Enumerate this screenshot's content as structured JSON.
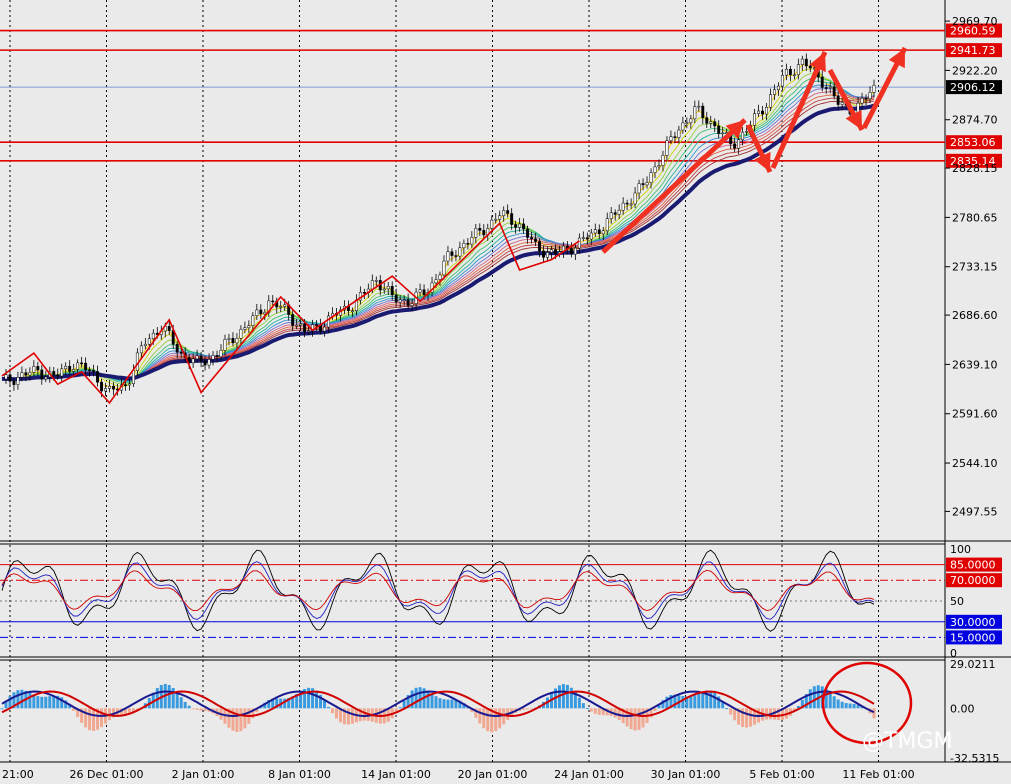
{
  "chart_data": [
    {
      "type": "candlestick",
      "pane": "price",
      "ylim": [
        2470,
        2990
      ],
      "y_ticks": [
        "2969.70",
        "2922.20",
        "2874.70",
        "2828.15",
        "2780.65",
        "2733.15",
        "2686.60",
        "2639.10",
        "2591.60",
        "2544.10",
        "2497.55"
      ],
      "current_price": "2906.12",
      "levels": [
        {
          "value": "2960.59",
          "color": "#e00000"
        },
        {
          "value": "2941.73",
          "color": "#e00000"
        },
        {
          "value": "2853.06",
          "color": "#e00000"
        },
        {
          "value": "2835.14",
          "color": "#e00000"
        }
      ],
      "x_labels": [
        "21:00",
        "26 Dec 01:00",
        "2 Jan 01:00",
        "8 Jan 01:00",
        "14 Jan 01:00",
        "20 Jan 01:00",
        "24 Jan 01:00",
        "30 Jan 01:00",
        "5 Feb 01:00",
        "11 Feb 01:00"
      ],
      "close_path": [
        [
          0,
          2622
        ],
        [
          1,
          2628
        ],
        [
          2,
          2633
        ],
        [
          3,
          2627
        ],
        [
          4,
          2640
        ],
        [
          5,
          2632
        ],
        [
          6,
          2612
        ],
        [
          7,
          2620
        ],
        [
          8,
          2660
        ],
        [
          9,
          2676
        ],
        [
          10,
          2650
        ],
        [
          11,
          2640
        ],
        [
          12,
          2648
        ],
        [
          13,
          2665
        ],
        [
          14,
          2680
        ],
        [
          15,
          2700
        ],
        [
          16,
          2690
        ],
        [
          17,
          2670
        ],
        [
          18,
          2678
        ],
        [
          19,
          2690
        ],
        [
          20,
          2700
        ],
        [
          21,
          2722
        ],
        [
          22,
          2702
        ],
        [
          23,
          2700
        ],
        [
          24,
          2712
        ],
        [
          25,
          2740
        ],
        [
          26,
          2756
        ],
        [
          27,
          2768
        ],
        [
          28,
          2784
        ],
        [
          29,
          2775
        ],
        [
          30,
          2752
        ],
        [
          31,
          2745
        ],
        [
          32,
          2752
        ],
        [
          33,
          2762
        ],
        [
          34,
          2776
        ],
        [
          35,
          2794
        ],
        [
          36,
          2810
        ],
        [
          37,
          2838
        ],
        [
          38,
          2866
        ],
        [
          39,
          2884
        ],
        [
          40,
          2870
        ],
        [
          41,
          2850
        ],
        [
          42,
          2868
        ],
        [
          43,
          2892
        ],
        [
          44,
          2918
        ],
        [
          45,
          2930
        ],
        [
          46,
          2915
        ],
        [
          47,
          2890
        ],
        [
          48,
          2884
        ],
        [
          49,
          2906
        ]
      ]
    },
    {
      "type": "line",
      "pane": "oscillator",
      "ylim": [
        0,
        100
      ],
      "y_ticks": [
        "100",
        "50",
        "0"
      ],
      "levels": [
        {
          "value": "85.0000",
          "color": "#e00000"
        },
        {
          "value": "70.0000",
          "color": "#e00000"
        },
        {
          "value": "30.0000",
          "color": "#0000e0"
        },
        {
          "value": "15.0000",
          "color": "#0000e0"
        }
      ]
    },
    {
      "type": "bar",
      "pane": "macd",
      "y_ticks": [
        "29.0211",
        "0.00",
        "-32.5315"
      ],
      "ylim": [
        -32.5315,
        29.0211
      ]
    }
  ],
  "watermark": "@TMGM"
}
